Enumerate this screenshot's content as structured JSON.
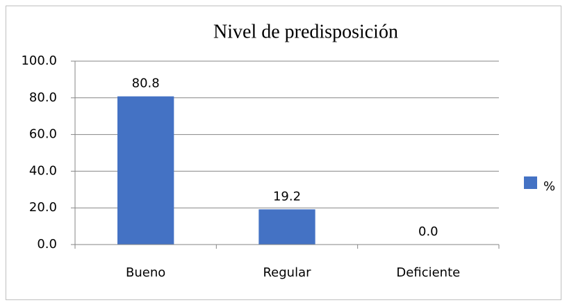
{
  "chart_data": {
    "type": "bar",
    "title": "Nivel de predisposición",
    "categories": [
      "Bueno",
      "Regular",
      "Deficiente"
    ],
    "series": [
      {
        "name": "%",
        "color": "#4472c4",
        "values": [
          80.8,
          19.2,
          0
        ],
        "value_labels": [
          "80.8",
          "19.2",
          "0.0"
        ]
      }
    ],
    "ylim": [
      0,
      100
    ],
    "yticks": [
      {
        "value": 0,
        "label": "0.0"
      },
      {
        "value": 20,
        "label": "20.0"
      },
      {
        "value": 40,
        "label": "40.0"
      },
      {
        "value": 60,
        "label": "60.0"
      },
      {
        "value": 80,
        "label": "80.0"
      },
      {
        "value": 100,
        "label": "100.0"
      }
    ],
    "grid": true,
    "legend": "right"
  }
}
